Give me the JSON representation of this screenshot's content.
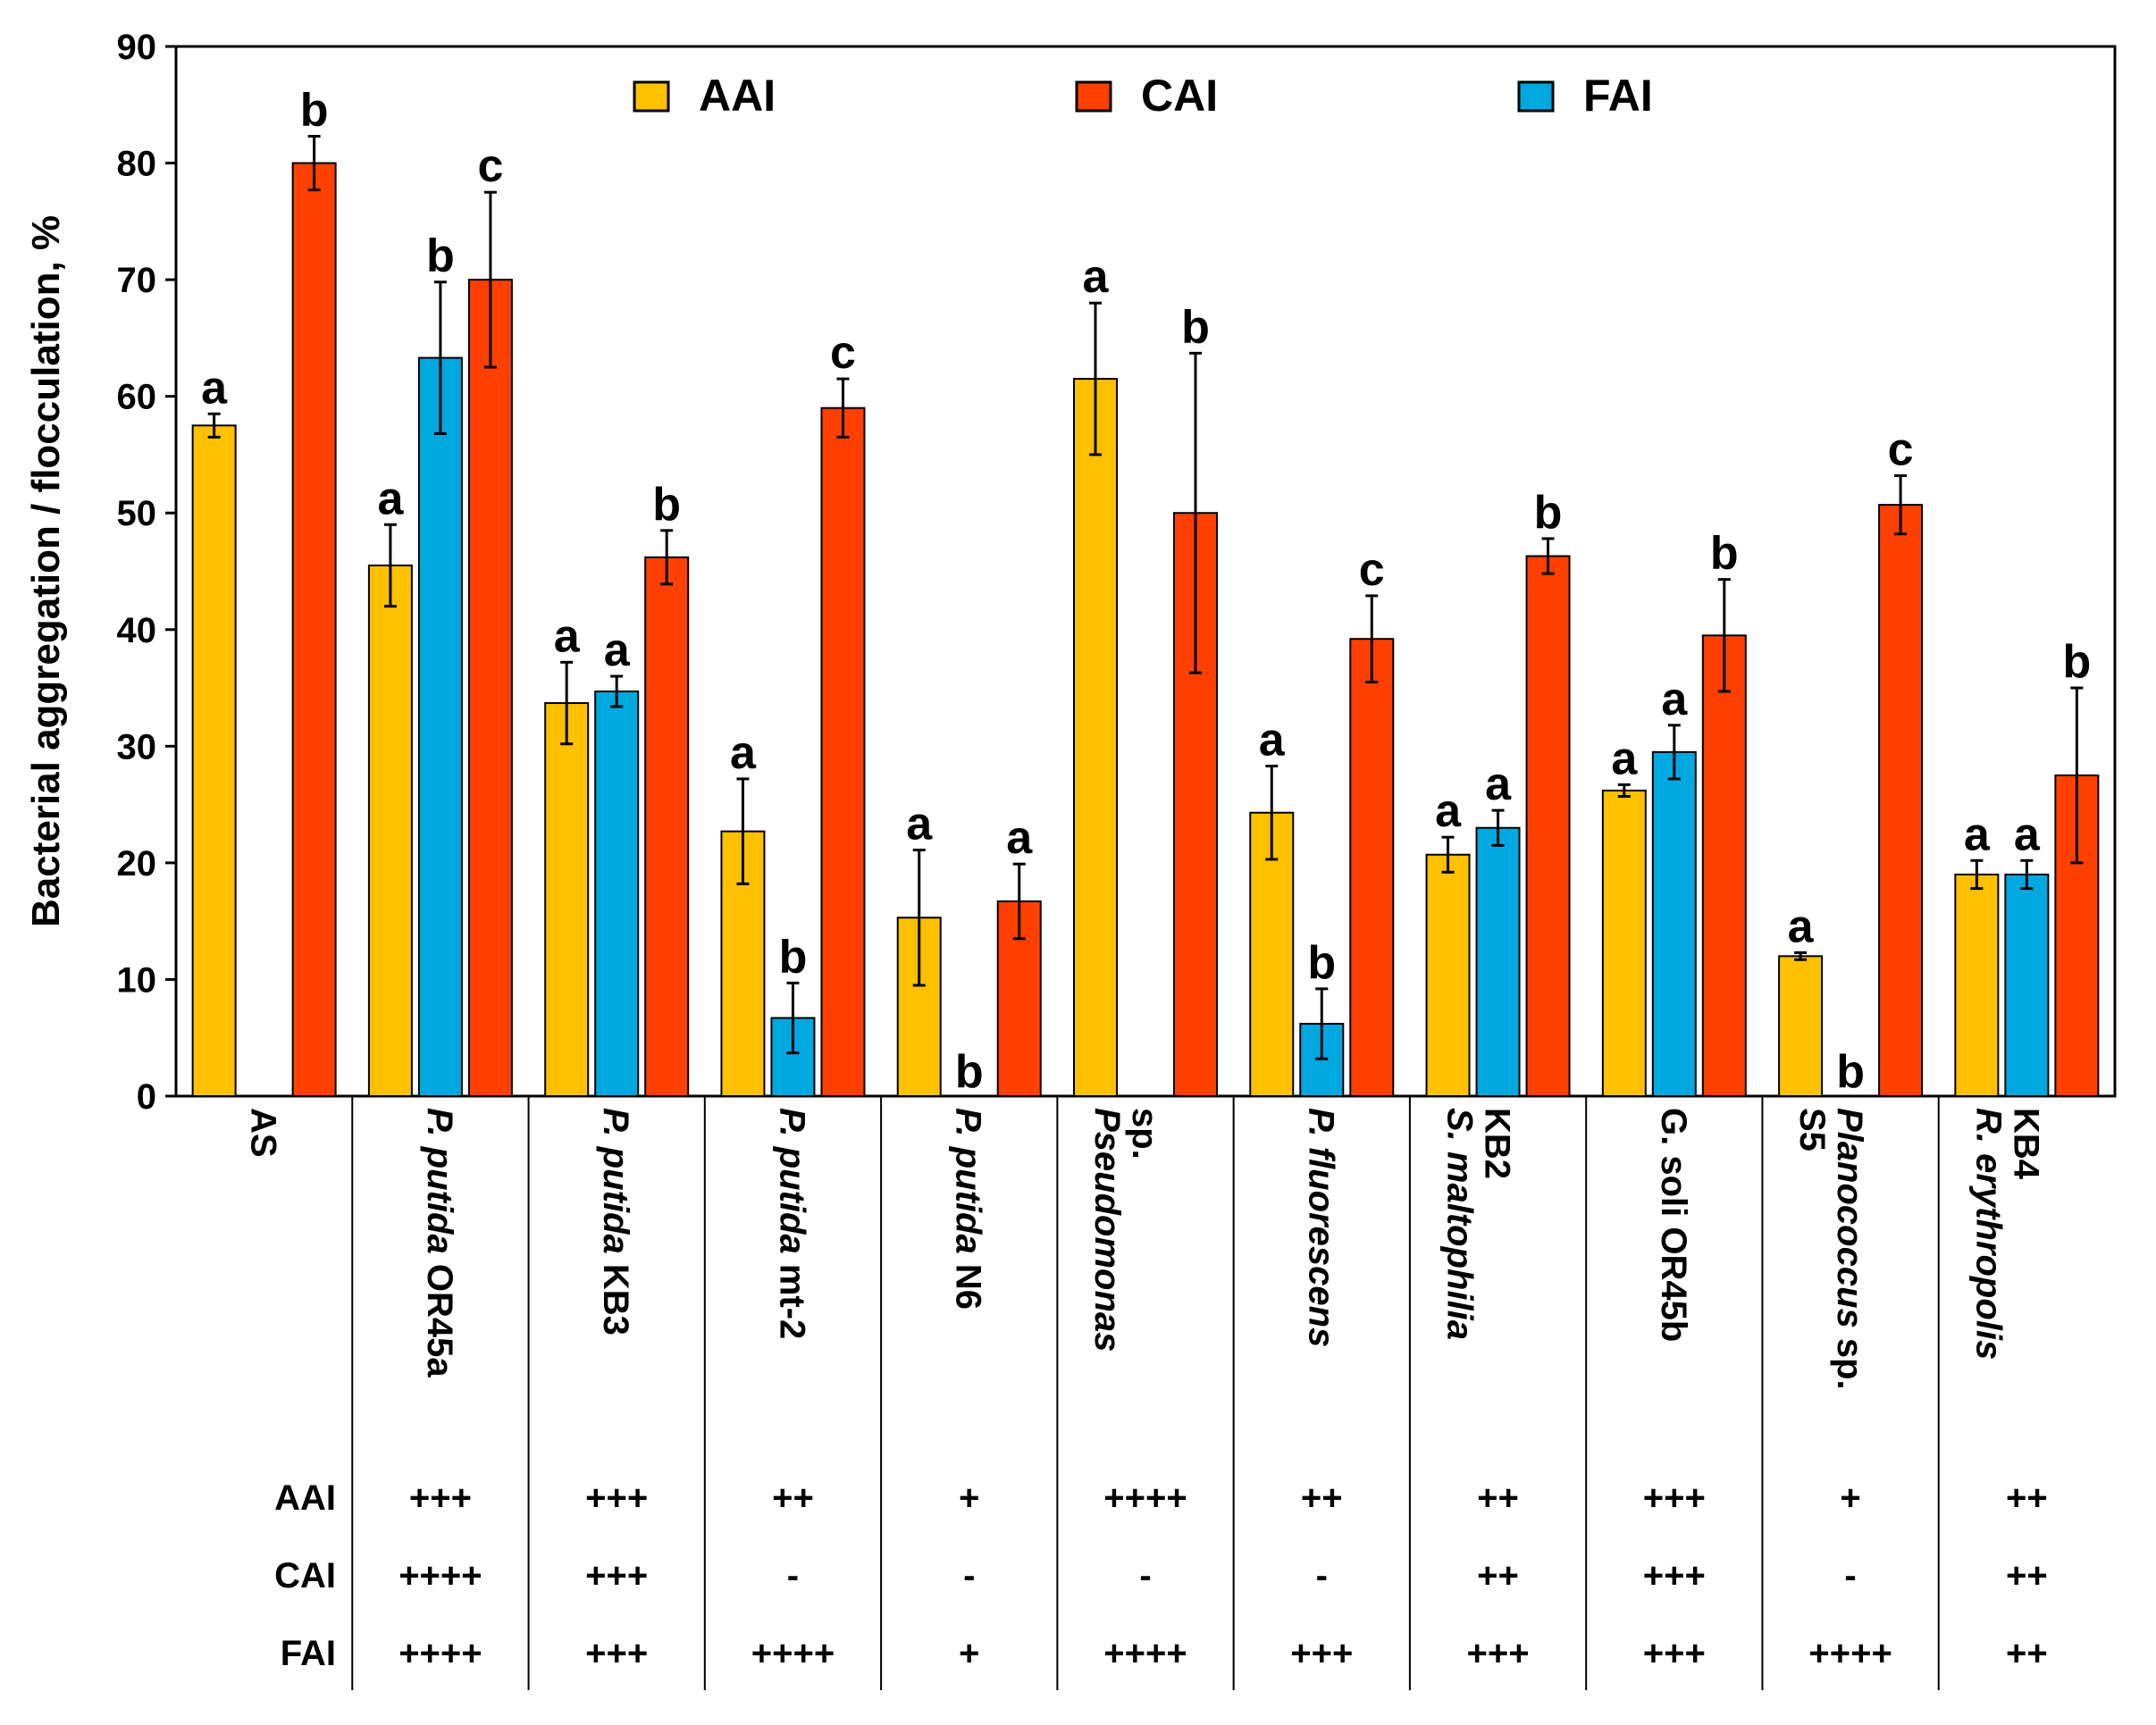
{
  "chart_data": {
    "type": "bar",
    "ylabel": "Bacterial aggregation / flocculation, %",
    "ylim": [
      0,
      90
    ],
    "yticks": [
      0,
      10,
      20,
      30,
      40,
      50,
      60,
      70,
      80,
      90
    ],
    "legend": [
      "AAI",
      "CAI",
      "FAI"
    ],
    "legend_placement": "top",
    "colors": {
      "AAI": "#FFC000",
      "CAI": "#FF4000",
      "FAI": "#00A8E0"
    },
    "categories": [
      {
        "label": "AS",
        "italic": "",
        "plain": "AS",
        "lines": 1
      },
      {
        "label": "P. putida OR45a",
        "italic": "P. putida",
        "plain": " OR45a",
        "lines": 1
      },
      {
        "label": "P. putida KB3",
        "italic": "P. putida",
        "plain": " KB3",
        "lines": 1
      },
      {
        "label": "P. putida mt-2",
        "italic": "P. putida",
        "plain": " mt-2",
        "lines": 1
      },
      {
        "label": "P. putida N6",
        "italic": "P. putida",
        "plain": " N6",
        "lines": 1
      },
      {
        "label": "Pseudomonas sp.",
        "italic": "Pseudomonas",
        "plain": "sp.",
        "lines": 2
      },
      {
        "label": "P. fluorescens",
        "italic": "P. fluorescens",
        "plain": "",
        "lines": 1
      },
      {
        "label": "S. maltophilia KB2",
        "italic": "S. maltophilia",
        "plain": "KB2",
        "lines": 2
      },
      {
        "label": "G. soli OR45b",
        "italic": "",
        "plain": "G. soli OR45b",
        "lines": 1
      },
      {
        "label": "Planococcus sp. S5",
        "italic": "Planococcus",
        "plain": " sp.|S5",
        "lines": 2
      },
      {
        "label": "R. erythropolis KB4",
        "italic": "R. erythropolis",
        "plain": "KB4",
        "lines": 2
      }
    ],
    "series": [
      {
        "name": "AAI",
        "values": [
          57.5,
          45.5,
          33.7,
          22.7,
          15.3,
          61.5,
          24.3,
          20.7,
          26.2,
          12.0,
          19.0
        ],
        "errors": [
          1.0,
          3.5,
          3.5,
          4.5,
          5.8,
          6.5,
          4.0,
          1.5,
          0.5,
          0.3,
          1.2
        ],
        "labels": [
          "a",
          "a",
          "a",
          "a",
          "a",
          "a",
          "a",
          "a",
          "a",
          "a",
          "a"
        ]
      },
      {
        "name": "FAI",
        "values": [
          null,
          63.3,
          34.7,
          6.7,
          0,
          null,
          6.2,
          23.0,
          29.5,
          0,
          19.0
        ],
        "errors": [
          null,
          6.5,
          1.3,
          3.0,
          0,
          null,
          3.0,
          1.5,
          2.3,
          0,
          1.2
        ],
        "labels": [
          "",
          "b",
          "a",
          "b",
          "b",
          "",
          "b",
          "a",
          "a",
          "b",
          "a"
        ]
      },
      {
        "name": "CAI",
        "values": [
          80.0,
          70.0,
          46.2,
          59.0,
          16.7,
          50.0,
          39.2,
          46.3,
          39.5,
          50.7,
          27.5
        ],
        "errors": [
          2.3,
          7.5,
          2.3,
          2.5,
          3.2,
          13.7,
          3.7,
          1.5,
          4.8,
          2.5,
          7.5
        ],
        "labels": [
          "b",
          "c",
          "b",
          "c",
          "a",
          "b",
          "c",
          "b",
          "b",
          "c",
          "b"
        ]
      }
    ],
    "table": {
      "row_labels": [
        "AAI",
        "CAI",
        "FAI"
      ],
      "rows": [
        [
          "+++",
          "+++",
          "++",
          "+",
          "++++",
          "++",
          "++",
          "+++",
          "+",
          "++"
        ],
        [
          "++++",
          "+++",
          "-",
          "-",
          "-",
          "-",
          "++",
          "+++",
          "-",
          "++"
        ],
        [
          "++++",
          "+++",
          "++++",
          "+",
          "++++",
          "+++",
          "+++",
          "+++",
          "++++",
          "++"
        ]
      ]
    }
  }
}
